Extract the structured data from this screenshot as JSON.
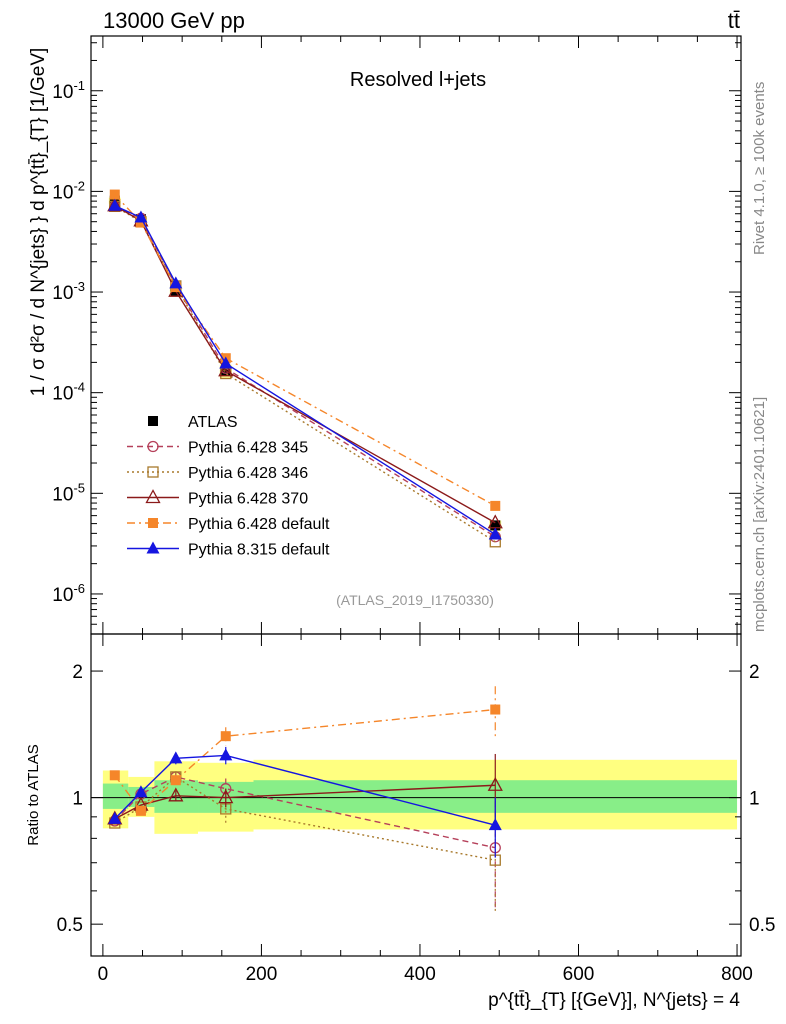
{
  "header": {
    "energy_label": "13000 GeV pp",
    "process_label": "tt̄"
  },
  "side": {
    "rivet_label": "Rivet 4.1.0, ≥ 100k events",
    "source_label": "mcplots.cern.ch [arXiv:2401.10621]"
  },
  "chart_data": [
    {
      "panel": "main",
      "type": "line",
      "title": "Resolved l+jets",
      "analysis_id": "(ATLAS_2019_I1750330)",
      "ylabel": "1 / σ d²σ / d N^{jets} } d p^{tt̄}_{T} [1/GeV]",
      "yscale": "log",
      "ylim": [
        4e-07,
        0.35
      ],
      "xlim": [
        -15,
        805
      ],
      "y_ticks": [
        {
          "value": 0.1,
          "label": "10^-1"
        },
        {
          "value": 0.01,
          "label": "10^-2"
        },
        {
          "value": 0.001,
          "label": "10^-3"
        },
        {
          "value": 0.0001,
          "label": "10^-4"
        },
        {
          "value": 1e-05,
          "label": "10^-5"
        },
        {
          "value": 1e-06,
          "label": "10^-6"
        }
      ],
      "x": [
        15,
        48,
        92,
        155,
        495
      ],
      "series": [
        {
          "name": "ATLAS",
          "color": "#000000",
          "marker": "filled-square",
          "line": "none",
          "values": [
            0.0081,
            0.0053,
            0.00102,
            0.000165,
            4.8e-06
          ],
          "band_rel": [
            0.07,
            0.05,
            0.12,
            0.15,
            0.12
          ]
        },
        {
          "name": "Pythia 6.428 345",
          "color": "#b5405a",
          "marker": "open-circle",
          "line": "dashed",
          "values": [
            0.0071,
            0.0054,
            0.00115,
            0.000175,
            3.7e-06
          ]
        },
        {
          "name": "Pythia 6.428 346",
          "color": "#a8792c",
          "marker": "open-square",
          "line": "dotted",
          "values": [
            0.0071,
            0.005,
            0.00115,
            0.000155,
            3.3e-06
          ]
        },
        {
          "name": "Pythia 6.428 370",
          "color": "#8b1a1a",
          "marker": "open-triangle",
          "line": "solid",
          "values": [
            0.0072,
            0.0051,
            0.00102,
            0.000165,
            5.1e-06
          ]
        },
        {
          "name": "Pythia 6.428 default",
          "color": "#f5862a",
          "marker": "filled-square",
          "line": "dashdot",
          "values": [
            0.0093,
            0.0049,
            0.00112,
            0.00022,
            7.5e-06
          ]
        },
        {
          "name": "Pythia 8.315 default",
          "color": "#1515e0",
          "marker": "filled-triangle",
          "line": "solid",
          "values": [
            0.0072,
            0.0055,
            0.00122,
            0.000195,
            3.9e-06
          ]
        }
      ]
    },
    {
      "panel": "ratio",
      "type": "line",
      "ylabel": "Ratio to ATLAS",
      "yscale": "log",
      "ylim": [
        0.42,
        2.45
      ],
      "xlim": [
        -15,
        805
      ],
      "y_ticks_left": [
        {
          "value": 2,
          "label": "2"
        },
        {
          "value": 1,
          "label": "1"
        },
        {
          "value": 0.5,
          "label": "0.5"
        }
      ],
      "y_ticks_right": [
        {
          "value": 2,
          "label": "2"
        },
        {
          "value": 1,
          "label": "1"
        },
        {
          "value": 0.5,
          "label": "0.5"
        }
      ],
      "x_ticks": [
        0,
        200,
        400,
        600,
        800
      ],
      "xlabel": "p^{tt̄}_{T} [{GeV}], N^{jets} = 4",
      "x": [
        15,
        48,
        92,
        155,
        495
      ],
      "bands": [
        {
          "name": "total-uncertainty",
          "color": "#ffff80",
          "bins": [
            {
              "x0": 0,
              "x1": 32,
              "lo": 0.845,
              "hi": 1.16
            },
            {
              "x0": 32,
              "x1": 65,
              "lo": 0.9,
              "hi": 1.12
            },
            {
              "x0": 65,
              "x1": 120,
              "lo": 0.82,
              "hi": 1.22
            },
            {
              "x0": 120,
              "x1": 190,
              "lo": 0.83,
              "hi": 1.21
            },
            {
              "x0": 190,
              "x1": 800,
              "lo": 0.84,
              "hi": 1.23
            }
          ]
        },
        {
          "name": "stat-uncertainty",
          "color": "#88ee88",
          "bins": [
            {
              "x0": 0,
              "x1": 32,
              "lo": 0.94,
              "hi": 1.08
            },
            {
              "x0": 32,
              "x1": 65,
              "lo": 0.95,
              "hi": 1.06
            },
            {
              "x0": 65,
              "x1": 120,
              "lo": 0.92,
              "hi": 1.1
            },
            {
              "x0": 120,
              "x1": 190,
              "lo": 0.92,
              "hi": 1.09
            },
            {
              "x0": 190,
              "x1": 800,
              "lo": 0.92,
              "hi": 1.1
            }
          ]
        }
      ],
      "series": [
        {
          "name": "Pythia 6.428 345",
          "color": "#b5405a",
          "marker": "open-circle",
          "line": "dashed",
          "values": [
            0.88,
            1.02,
            1.12,
            1.05,
            0.76
          ],
          "err": [
            0.02,
            0.02,
            0.03,
            0.06,
            0.22
          ]
        },
        {
          "name": "Pythia 6.428 346",
          "color": "#a8792c",
          "marker": "open-square",
          "line": "dotted",
          "values": [
            0.87,
            0.95,
            1.12,
            0.94,
            0.71
          ],
          "err": [
            0.02,
            0.02,
            0.03,
            0.07,
            0.18
          ]
        },
        {
          "name": "Pythia 6.428 370",
          "color": "#8b1a1a",
          "marker": "open-triangle",
          "line": "solid",
          "values": [
            0.89,
            0.96,
            1.01,
            1.0,
            1.07
          ],
          "err": [
            0.02,
            0.02,
            0.03,
            0.05,
            0.2
          ]
        },
        {
          "name": "Pythia 6.428 default",
          "color": "#f5862a",
          "marker": "filled-square",
          "line": "dashdot",
          "values": [
            1.13,
            0.93,
            1.1,
            1.4,
            1.62
          ],
          "err": [
            0.02,
            0.02,
            0.03,
            0.07,
            0.22
          ]
        },
        {
          "name": "Pythia 8.315 default",
          "color": "#1515e0",
          "marker": "filled-triangle",
          "line": "solid",
          "values": [
            0.89,
            1.03,
            1.24,
            1.26,
            0.86
          ],
          "err": [
            0.02,
            0.02,
            0.04,
            0.06,
            0.14
          ]
        }
      ]
    }
  ]
}
